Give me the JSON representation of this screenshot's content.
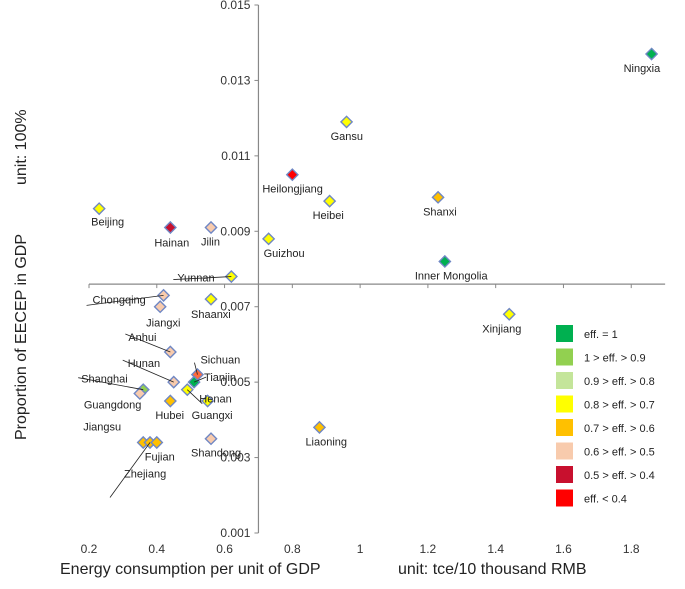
{
  "chart_data": {
    "type": "scatter",
    "title": "",
    "xlabel": "Energy consumption per unit of GDP",
    "xunit": "unit: tce/10 thousand RMB",
    "ylabel": "Proportion of EECEP in GDP",
    "yunit": "unit: 100%",
    "xlim": [
      0.2,
      1.9
    ],
    "ylim": [
      0.001,
      0.015
    ],
    "xticks": [
      "0.2",
      "0.4",
      "0.6",
      "0.8",
      "1",
      "1.2",
      "1.4",
      "1.6",
      "1.8"
    ],
    "yticks": [
      "0.001",
      "0.003",
      "0.005",
      "0.007",
      "0.009",
      "0.011",
      "0.013",
      "0.015"
    ],
    "xcross": 0.7,
    "ycross": 0.0076,
    "grid": false,
    "legend_position": "right",
    "legend": [
      {
        "label": "eff.  = 1",
        "color": "#00b050"
      },
      {
        "label": "1 > eff. > 0.9",
        "color": "#92d050"
      },
      {
        "label": "0.9 > eff. > 0.8",
        "color": "#c4e59a"
      },
      {
        "label": "0.8 > eff. > 0.7",
        "color": "#ffff00"
      },
      {
        "label": "0.7 > eff. > 0.6",
        "color": "#ffc000"
      },
      {
        "label": "0.6 > eff. > 0.5",
        "color": "#f8cbad"
      },
      {
        "label": "0.5 > eff. > 0.4",
        "color": "#c8102e"
      },
      {
        "label": "eff. < 0.4",
        "color": "#ff0000"
      }
    ],
    "points": [
      {
        "name": "Ningxia",
        "x": 1.86,
        "y": 0.0137,
        "color": "#00b050"
      },
      {
        "name": "Gansu",
        "x": 0.96,
        "y": 0.0119,
        "color": "#ffff00"
      },
      {
        "name": "Heilongjiang",
        "x": 0.8,
        "y": 0.0105,
        "color": "#ff0000"
      },
      {
        "name": "Heibei",
        "x": 0.91,
        "y": 0.0098,
        "color": "#ffff00"
      },
      {
        "name": "Shanxi",
        "x": 1.23,
        "y": 0.0099,
        "color": "#ffc000"
      },
      {
        "name": "Beijing",
        "x": 0.23,
        "y": 0.0096,
        "color": "#ffff00"
      },
      {
        "name": "Hainan",
        "x": 0.44,
        "y": 0.0091,
        "color": "#c8102e"
      },
      {
        "name": "Jilin",
        "x": 0.56,
        "y": 0.0091,
        "color": "#f8cbad"
      },
      {
        "name": "Guizhou",
        "x": 0.73,
        "y": 0.0088,
        "color": "#ffff00"
      },
      {
        "name": "Inner Mongolia",
        "x": 1.25,
        "y": 0.0082,
        "color": "#00b050"
      },
      {
        "name": "Yunnan",
        "x": 0.62,
        "y": 0.0078,
        "color": "#ffff00"
      },
      {
        "name": "Chongqing",
        "x": 0.42,
        "y": 0.0073,
        "color": "#f8cbad"
      },
      {
        "name": "Jiangxi",
        "x": 0.41,
        "y": 0.007,
        "color": "#f8cbad"
      },
      {
        "name": "Shaanxi",
        "x": 0.56,
        "y": 0.0072,
        "color": "#ffff00"
      },
      {
        "name": "Xinjiang",
        "x": 1.44,
        "y": 0.0068,
        "color": "#ffff00"
      },
      {
        "name": "Anhui",
        "x": 0.44,
        "y": 0.0058,
        "color": "#f8cbad"
      },
      {
        "name": "Sichuan",
        "x": 0.52,
        "y": 0.0052,
        "color": "#ff6a3d"
      },
      {
        "name": "Hunan",
        "x": 0.45,
        "y": 0.005,
        "color": "#f8cbad"
      },
      {
        "name": "Tianjin",
        "x": 0.51,
        "y": 0.005,
        "color": "#00b050"
      },
      {
        "name": "Henan",
        "x": 0.49,
        "y": 0.0048,
        "color": "#ffff00"
      },
      {
        "name": "Shanghai",
        "x": 0.36,
        "y": 0.0048,
        "color": "#92d050"
      },
      {
        "name": "Guangdong",
        "x": 0.35,
        "y": 0.0047,
        "color": "#f8cbad"
      },
      {
        "name": "Hubei",
        "x": 0.44,
        "y": 0.0045,
        "color": "#ffc000"
      },
      {
        "name": "Guangxi",
        "x": 0.55,
        "y": 0.0045,
        "color": "#ffff00"
      },
      {
        "name": "Liaoning",
        "x": 0.88,
        "y": 0.0038,
        "color": "#ffc000"
      },
      {
        "name": "Jiangsu",
        "x": 0.36,
        "y": 0.0034,
        "color": "#ffc000"
      },
      {
        "name": "Zhejiang",
        "x": 0.38,
        "y": 0.0034,
        "color": "#ffc000"
      },
      {
        "name": "Fujian",
        "x": 0.4,
        "y": 0.0034,
        "color": "#ffc000"
      },
      {
        "name": "Shandong",
        "x": 0.56,
        "y": 0.0035,
        "color": "#f8cbad"
      }
    ]
  }
}
